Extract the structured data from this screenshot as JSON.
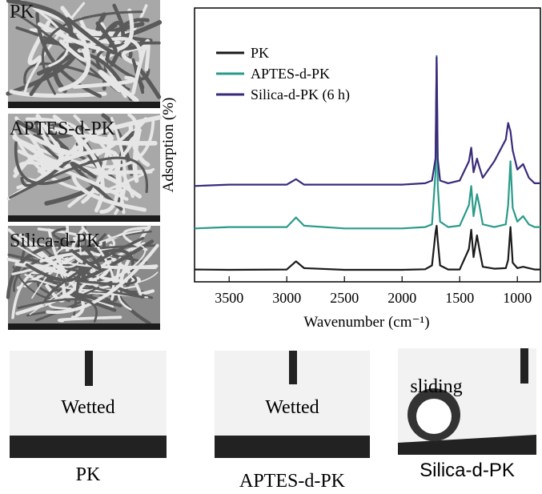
{
  "sem_images": [
    {
      "label": "PK"
    },
    {
      "label": "APTES-d-PK"
    },
    {
      "label": "Silica-d-PK"
    }
  ],
  "contact_images": [
    {
      "annotation": "Wetted",
      "caption": "PK"
    },
    {
      "annotation": "Wetted",
      "caption": "APTES-d-PK"
    },
    {
      "annotation": "sliding",
      "caption": "Silica-d-PK"
    }
  ],
  "chart_data": {
    "type": "line",
    "x_label": "Wavenumber (cm⁻¹)",
    "y_label": "Adsorption (%)",
    "x": [
      3800,
      3500,
      3000,
      2920,
      2850,
      2500,
      2000,
      1800,
      1740,
      1710,
      1700,
      1690,
      1670,
      1600,
      1500,
      1420,
      1400,
      1380,
      1350,
      1330,
      1300,
      1200,
      1100,
      1080,
      1060,
      1040,
      1000,
      950,
      900,
      850,
      800
    ],
    "series": [
      {
        "name": "PK",
        "color": "#1a1a1a",
        "values": [
          4.5,
          4.4,
          4.5,
          7.5,
          5,
          4.4,
          4.4,
          4.6,
          6,
          18,
          20.5,
          15,
          6,
          4.5,
          4.5,
          12,
          19,
          9,
          17,
          12,
          5.5,
          4.8,
          5,
          8,
          20,
          7,
          5,
          5.5,
          5,
          4.5,
          4.5
        ]
      },
      {
        "name": "APTES-d-PK",
        "color": "#2a9a8a",
        "values": [
          19.5,
          20,
          20,
          23.5,
          20.5,
          19.5,
          19.5,
          20,
          21,
          40,
          82.5,
          35,
          22,
          20,
          20.5,
          28,
          35,
          24,
          32,
          28,
          21,
          20,
          21,
          28,
          44,
          27,
          22,
          24,
          21,
          20,
          20
        ]
      },
      {
        "name": "Silica-d-PK (6 h)",
        "color": "#3a2a7a",
        "values": [
          35,
          35.5,
          35.5,
          37.5,
          35.5,
          35.5,
          35.5,
          36,
          37,
          45,
          82,
          45,
          37,
          36,
          37,
          44,
          49,
          40,
          45,
          42,
          38,
          44,
          52,
          58,
          55,
          48,
          41,
          43,
          38,
          36,
          36
        ]
      }
    ],
    "xlim": [
      3800,
      800
    ],
    "xticks": [
      3500,
      3000,
      2500,
      2000,
      1500,
      1000
    ],
    "ylim": [
      0,
      100
    ]
  }
}
